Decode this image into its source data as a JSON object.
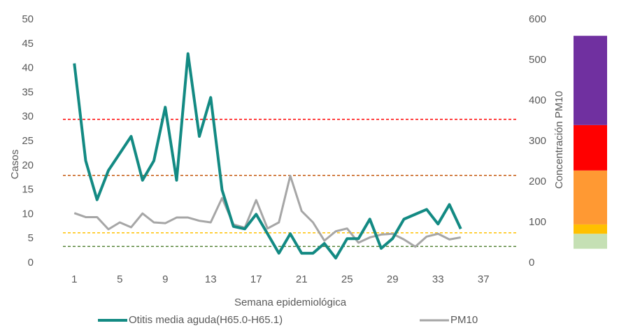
{
  "chart_data": {
    "type": "line",
    "xlabel": "Semana epidemiológica",
    "ylabel": "Casos",
    "y2label": "Concentración PM10",
    "x": [
      1,
      2,
      3,
      4,
      5,
      6,
      7,
      8,
      9,
      10,
      11,
      12,
      13,
      14,
      15,
      16,
      17,
      18,
      19,
      20,
      21,
      22,
      23,
      24,
      25,
      26,
      27,
      28,
      29,
      30,
      31,
      32,
      33,
      34,
      35
    ],
    "series": [
      {
        "name": "Otitis media aguda(H65.0-H65.1)",
        "color": "#138a83",
        "axis": "y",
        "values": [
          41,
          21,
          13,
          19,
          22.5,
          26,
          17,
          21,
          32,
          17,
          43,
          26,
          34,
          15,
          7.5,
          7,
          10,
          6,
          2,
          6,
          2,
          2,
          4,
          1,
          5,
          5,
          9,
          3,
          5,
          9,
          10,
          11,
          8,
          12,
          7
        ]
      },
      {
        "name": "PM10",
        "color": "#a6a6a6",
        "axis": "y2",
        "values": [
          123,
          113,
          113,
          83,
          100,
          88,
          122,
          100,
          98,
          112,
          112,
          104,
          100,
          160,
          95,
          87,
          155,
          85,
          100,
          215,
          128,
          100,
          55,
          78,
          85,
          50,
          63,
          70,
          72,
          58,
          40,
          65,
          72,
          58,
          63
        ]
      }
    ],
    "xlim": [
      0,
      40
    ],
    "xticks": [
      1,
      5,
      9,
      13,
      17,
      21,
      25,
      29,
      33,
      37
    ],
    "ylim": [
      0,
      50
    ],
    "yticks": [
      0,
      5,
      10,
      15,
      20,
      25,
      30,
      35,
      40,
      45,
      50
    ],
    "y2lim": [
      0,
      600
    ],
    "y2ticks": [
      0,
      100,
      200,
      300,
      400,
      500,
      600
    ],
    "reference_lines": [
      {
        "value": 29.5,
        "color": "#ff0000"
      },
      {
        "value": 18,
        "color": "#c55a11"
      },
      {
        "value": 6.2,
        "color": "#ffc000"
      },
      {
        "value": 3.4,
        "color": "#548235"
      }
    ],
    "bands": [
      {
        "from": 35,
        "to": 72,
        "color": "#c5e0b4"
      },
      {
        "from": 72,
        "to": 95,
        "color": "#ffc000"
      },
      {
        "from": 95,
        "to": 228,
        "color": "#ff9933"
      },
      {
        "from": 228,
        "to": 340,
        "color": "#ff0000"
      },
      {
        "from": 340,
        "to": 560,
        "color": "#7030a0"
      }
    ],
    "legend": "bottom"
  }
}
